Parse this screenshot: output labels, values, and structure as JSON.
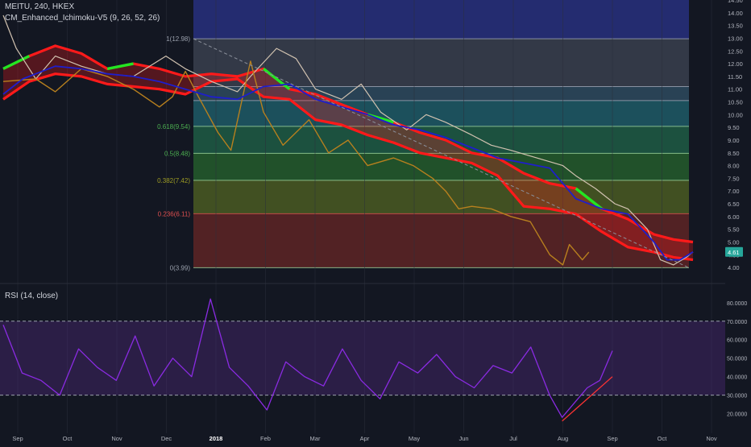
{
  "header": {
    "symbol_line": "MEITU, 240, HKEX",
    "indicator_line": "CM_Enhanced_Ichimoku-V5 (9, 26, 52, 26)",
    "rsi_line": "RSI (14, close)"
  },
  "colors": {
    "background": "#131722",
    "price": "#d1c2b0",
    "lagging": "#b8801e",
    "kijun": "#1e1ecc",
    "cloud_bear": "#ff1a1a",
    "cloud_bull": "#22e622",
    "rsi_line": "#8a2be2",
    "trendline": "#ff3333",
    "price_badge": "#26a69a"
  },
  "chart_data": [
    {
      "type": "line",
      "title": "MEITU, 240, HKEX",
      "x_ticks": [
        "Sep",
        "Oct",
        "Nov",
        "Dec",
        "2018",
        "Feb",
        "Mar",
        "Apr",
        "May",
        "Jun",
        "Jul",
        "Aug",
        "Sep",
        "Oct",
        "Nov"
      ],
      "y_ticks": [
        "14.50",
        "14.00",
        "13.50",
        "13.00",
        "12.50",
        "12.00",
        "11.50",
        "11.00",
        "10.50",
        "10.00",
        "9.50",
        "9.00",
        "8.50",
        "8.00",
        "7.50",
        "7.00",
        "6.50",
        "6.00",
        "5.50",
        "5.00",
        "4.50",
        "4.00"
      ],
      "ylim": [
        3.75,
        14.5
      ],
      "last_price_label": "4.61",
      "fib_levels": [
        {
          "label": "1(12.98)",
          "value": 12.98
        },
        {
          "label": "0.618(9.54)",
          "value": 9.54
        },
        {
          "label": "0.5(8.48)",
          "value": 8.48
        },
        {
          "label": "0.382(7.42)",
          "value": 7.42
        },
        {
          "label": "0.236(6.11)",
          "value": 6.11
        },
        {
          "label": "0(3.99)",
          "value": 3.99
        }
      ],
      "series": [
        {
          "name": "",
          "role": "price",
          "values": [
            [
              0,
              13.9
            ],
            [
              2,
              12.6
            ],
            [
              5,
              11.4
            ],
            [
              8,
              12.3
            ],
            [
              12,
              11.9
            ],
            [
              16,
              11.6
            ],
            [
              20,
              11.5
            ],
            [
              25,
              12.3
            ],
            [
              28,
              11.8
            ],
            [
              32,
              11.3
            ],
            [
              36,
              10.9
            ],
            [
              38,
              11.5
            ],
            [
              42,
              12.6
            ],
            [
              45,
              12.2
            ],
            [
              48,
              11.0
            ],
            [
              52,
              10.6
            ],
            [
              55,
              11.2
            ],
            [
              58,
              10.1
            ],
            [
              62,
              9.4
            ],
            [
              65,
              10.0
            ],
            [
              68,
              9.7
            ],
            [
              72,
              9.2
            ],
            [
              75,
              8.8
            ],
            [
              78,
              8.6
            ],
            [
              82,
              8.3
            ],
            [
              86,
              8.0
            ],
            [
              88,
              7.6
            ],
            [
              91,
              7.1
            ],
            [
              94,
              6.5
            ],
            [
              96,
              6.3
            ],
            [
              99,
              5.5
            ],
            [
              101,
              4.3
            ],
            [
              103,
              4.1
            ],
            [
              105,
              4.4
            ],
            [
              106,
              4.61
            ]
          ]
        },
        {
          "name": "",
          "role": "lagging",
          "values": [
            [
              0,
              11.3
            ],
            [
              5,
              11.4
            ],
            [
              8,
              10.9
            ],
            [
              12,
              11.8
            ],
            [
              16,
              11.5
            ],
            [
              20,
              11.0
            ],
            [
              24,
              10.3
            ],
            [
              26,
              10.7
            ],
            [
              28,
              11.7
            ],
            [
              30,
              10.7
            ],
            [
              33,
              9.3
            ],
            [
              35,
              8.6
            ],
            [
              38,
              12.1
            ],
            [
              40,
              10.1
            ],
            [
              43,
              8.8
            ],
            [
              47,
              9.8
            ],
            [
              50,
              8.5
            ],
            [
              53,
              9.0
            ],
            [
              56,
              8.0
            ],
            [
              60,
              8.3
            ],
            [
              63,
              8.0
            ],
            [
              66,
              7.5
            ],
            [
              68,
              7.0
            ],
            [
              70,
              6.3
            ],
            [
              72,
              6.4
            ],
            [
              75,
              6.3
            ],
            [
              78,
              6.0
            ],
            [
              81,
              5.8
            ],
            [
              84,
              4.5
            ],
            [
              86,
              4.1
            ],
            [
              87,
              4.9
            ],
            [
              89,
              4.3
            ],
            [
              90,
              4.6
            ]
          ]
        },
        {
          "name": "",
          "role": "kijun",
          "values": [
            [
              0,
              10.8
            ],
            [
              3,
              11.4
            ],
            [
              8,
              11.9
            ],
            [
              12,
              11.8
            ],
            [
              16,
              11.6
            ],
            [
              20,
              11.5
            ],
            [
              24,
              11.3
            ],
            [
              28,
              11.0
            ],
            [
              32,
              10.7
            ],
            [
              36,
              10.6
            ],
            [
              40,
              11.1
            ],
            [
              44,
              11.2
            ],
            [
              48,
              10.6
            ],
            [
              52,
              10.3
            ],
            [
              56,
              10.0
            ],
            [
              60,
              9.6
            ],
            [
              64,
              9.4
            ],
            [
              68,
              9.1
            ],
            [
              72,
              8.7
            ],
            [
              76,
              8.3
            ],
            [
              80,
              8.1
            ],
            [
              84,
              7.9
            ],
            [
              88,
              6.7
            ],
            [
              92,
              6.3
            ],
            [
              96,
              6.1
            ],
            [
              100,
              5.0
            ],
            [
              102,
              4.3
            ],
            [
              104,
              4.3
            ],
            [
              106,
              4.61
            ]
          ]
        },
        {
          "name": "",
          "role": "cloud_upper",
          "values": [
            [
              0,
              11.8
            ],
            [
              4,
              12.3
            ],
            [
              8,
              12.7
            ],
            [
              12,
              12.4
            ],
            [
              16,
              11.8
            ],
            [
              20,
              12.0
            ],
            [
              24,
              11.8
            ],
            [
              28,
              11.5
            ],
            [
              32,
              11.6
            ],
            [
              36,
              11.5
            ],
            [
              40,
              11.8
            ],
            [
              44,
              11.0
            ],
            [
              48,
              10.8
            ],
            [
              52,
              10.4
            ],
            [
              56,
              10.0
            ],
            [
              60,
              9.7
            ],
            [
              64,
              9.3
            ],
            [
              68,
              9.0
            ],
            [
              72,
              8.5
            ],
            [
              76,
              8.3
            ],
            [
              80,
              7.7
            ],
            [
              84,
              7.3
            ],
            [
              88,
              7.1
            ],
            [
              92,
              6.3
            ],
            [
              96,
              5.9
            ],
            [
              100,
              5.3
            ],
            [
              103,
              5.1
            ],
            [
              106,
              5.0
            ]
          ]
        },
        {
          "name": "",
          "role": "cloud_lower",
          "values": [
            [
              0,
              10.6
            ],
            [
              4,
              11.3
            ],
            [
              8,
              11.6
            ],
            [
              12,
              11.5
            ],
            [
              16,
              11.2
            ],
            [
              20,
              11.1
            ],
            [
              24,
              11.0
            ],
            [
              28,
              10.8
            ],
            [
              32,
              11.3
            ],
            [
              36,
              11.4
            ],
            [
              40,
              10.7
            ],
            [
              44,
              10.6
            ],
            [
              48,
              9.8
            ],
            [
              52,
              9.6
            ],
            [
              56,
              9.2
            ],
            [
              60,
              8.9
            ],
            [
              64,
              8.5
            ],
            [
              68,
              8.3
            ],
            [
              72,
              8.1
            ],
            [
              76,
              7.6
            ],
            [
              80,
              6.4
            ],
            [
              84,
              6.3
            ],
            [
              88,
              6.1
            ],
            [
              92,
              5.4
            ],
            [
              96,
              4.8
            ],
            [
              100,
              4.6
            ],
            [
              103,
              4.4
            ],
            [
              106,
              4.3
            ]
          ]
        }
      ]
    },
    {
      "type": "line",
      "title": "RSI (14, close)",
      "y_ticks": [
        "80.0000",
        "70.0000",
        "60.0000",
        "50.0000",
        "40.0000",
        "30.0000",
        "20.0000"
      ],
      "ylim": [
        12,
        86
      ],
      "bands": [
        70,
        30
      ],
      "series": [
        {
          "name": "",
          "role": "rsi",
          "values": [
            [
              0,
              68
            ],
            [
              3,
              42
            ],
            [
              6,
              38
            ],
            [
              9,
              30
            ],
            [
              12,
              55
            ],
            [
              15,
              45
            ],
            [
              18,
              38
            ],
            [
              21,
              62
            ],
            [
              24,
              35
            ],
            [
              27,
              50
            ],
            [
              30,
              40
            ],
            [
              33,
              82
            ],
            [
              36,
              45
            ],
            [
              39,
              35
            ],
            [
              42,
              22
            ],
            [
              45,
              48
            ],
            [
              48,
              40
            ],
            [
              51,
              35
            ],
            [
              54,
              55
            ],
            [
              57,
              38
            ],
            [
              60,
              28
            ],
            [
              63,
              48
            ],
            [
              66,
              42
            ],
            [
              69,
              52
            ],
            [
              72,
              40
            ],
            [
              75,
              34
            ],
            [
              78,
              46
            ],
            [
              81,
              42
            ],
            [
              84,
              56
            ],
            [
              87,
              30
            ],
            [
              89,
              18
            ],
            [
              91,
              26
            ],
            [
              93,
              34
            ],
            [
              95,
              38
            ],
            [
              97,
              54
            ]
          ]
        },
        {
          "name": "",
          "role": "trendline",
          "values": [
            [
              89,
              16
            ],
            [
              97,
              40
            ]
          ]
        }
      ]
    }
  ]
}
